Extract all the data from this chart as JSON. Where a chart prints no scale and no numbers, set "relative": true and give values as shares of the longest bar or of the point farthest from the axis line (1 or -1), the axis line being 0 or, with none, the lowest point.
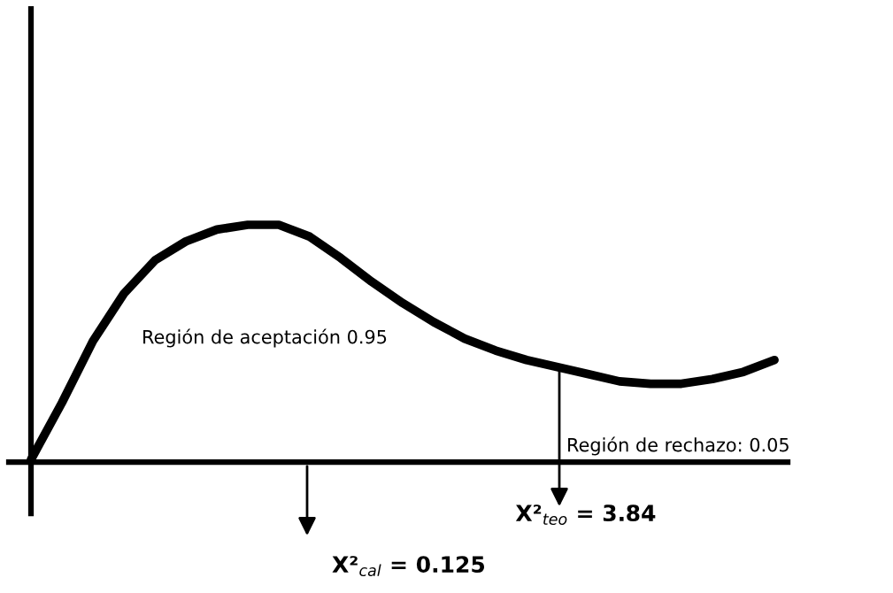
{
  "chart_data": {
    "type": "line",
    "relative": true,
    "color": "#000000",
    "marker": "none",
    "line_style": "solid",
    "categories": [
      null,
      null,
      null,
      null,
      null,
      null,
      null,
      null,
      null,
      null,
      null,
      null,
      null,
      null,
      null,
      null,
      null,
      null,
      null,
      null,
      null,
      null,
      null,
      null,
      null
    ],
    "values": [
      0.01,
      0.25,
      0.51,
      0.71,
      0.85,
      0.93,
      0.98,
      1,
      1,
      0.95,
      0.86,
      0.76,
      0.67,
      0.59,
      0.52,
      0.47,
      0.43,
      0.4,
      0.37,
      0.34,
      0.33,
      0.33,
      0.35,
      0.38,
      0.43
    ],
    "annotations": [
      "Región de aceptación 0.95",
      "Región de rechazo: 0.05",
      "X²$_{teo}$ = 3.84",
      "X²$_{cal}$ = 0.125"
    ]
  }
}
